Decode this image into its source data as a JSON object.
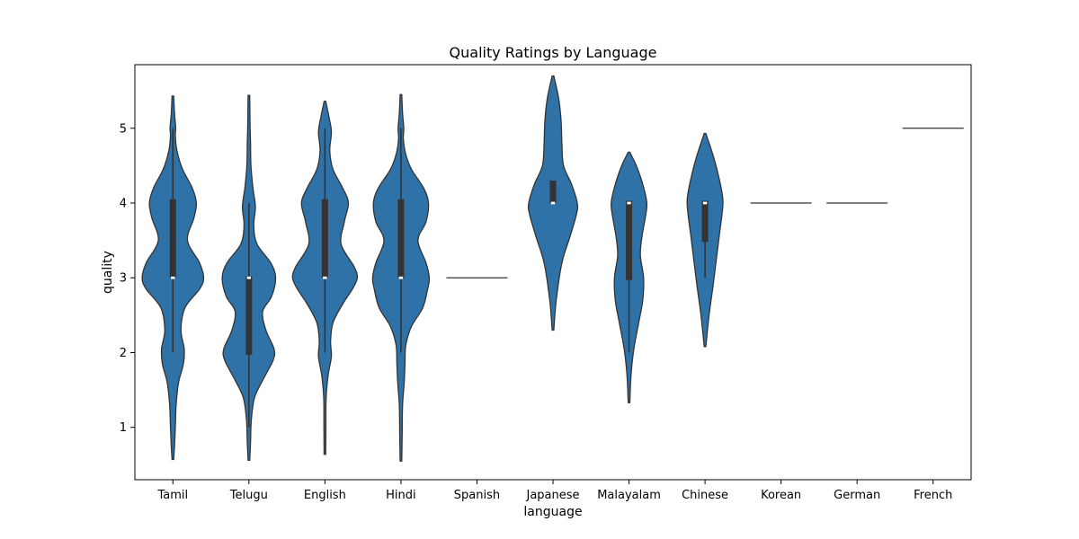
{
  "chart_data": {
    "type": "violin",
    "title": "Quality Ratings by Language",
    "xlabel": "language",
    "ylabel": "quality",
    "ylim": [
      0.3,
      5.85
    ],
    "yticks": [
      1,
      2,
      3,
      4,
      5
    ],
    "grid": false,
    "legend": "none",
    "color": "#2f72a8",
    "edge_color": "#333333",
    "categories": [
      "Tamil",
      "Telugu",
      "English",
      "Hindi",
      "Spanish",
      "Japanese",
      "Malayalam",
      "Chinese",
      "Korean",
      "German",
      "French"
    ],
    "violins": [
      {
        "category": "Tamil",
        "min": 0.57,
        "max": 5.43,
        "q1": 3.0,
        "median": 3.0,
        "q3": 4.05,
        "whisker_low": 2.0,
        "whisker_high": 5.0,
        "density": [
          [
            0.57,
            0.01
          ],
          [
            0.75,
            0.02
          ],
          [
            1.0,
            0.03
          ],
          [
            1.3,
            0.04
          ],
          [
            1.6,
            0.07
          ],
          [
            1.85,
            0.13
          ],
          [
            2.05,
            0.14
          ],
          [
            2.3,
            0.1
          ],
          [
            2.6,
            0.15
          ],
          [
            2.85,
            0.33
          ],
          [
            3.0,
            0.38
          ],
          [
            3.2,
            0.33
          ],
          [
            3.5,
            0.18
          ],
          [
            3.8,
            0.26
          ],
          [
            4.0,
            0.29
          ],
          [
            4.2,
            0.24
          ],
          [
            4.45,
            0.12
          ],
          [
            4.7,
            0.05
          ],
          [
            4.9,
            0.03
          ],
          [
            5.0,
            0.035
          ],
          [
            5.2,
            0.02
          ],
          [
            5.43,
            0.01
          ]
        ]
      },
      {
        "category": "Telugu",
        "min": 0.56,
        "max": 5.44,
        "q1": 1.97,
        "median": 3.0,
        "q3": 3.02,
        "whisker_low": 1.0,
        "whisker_high": 4.0,
        "density": [
          [
            0.56,
            0.01
          ],
          [
            0.8,
            0.02
          ],
          [
            1.1,
            0.03
          ],
          [
            1.4,
            0.07
          ],
          [
            1.65,
            0.18
          ],
          [
            1.9,
            0.3
          ],
          [
            2.05,
            0.31
          ],
          [
            2.3,
            0.21
          ],
          [
            2.55,
            0.17
          ],
          [
            2.75,
            0.28
          ],
          [
            3.0,
            0.33
          ],
          [
            3.2,
            0.27
          ],
          [
            3.45,
            0.1
          ],
          [
            3.7,
            0.06
          ],
          [
            3.95,
            0.08
          ],
          [
            4.2,
            0.05
          ],
          [
            4.5,
            0.025
          ],
          [
            4.8,
            0.02
          ],
          [
            5.0,
            0.015
          ],
          [
            5.44,
            0.01
          ]
        ]
      },
      {
        "category": "English",
        "min": 0.64,
        "max": 5.36,
        "q1": 3.0,
        "median": 3.0,
        "q3": 4.05,
        "whisker_low": 2.0,
        "whisker_high": 5.0,
        "density": [
          [
            0.64,
            0.01
          ],
          [
            1.0,
            0.012
          ],
          [
            1.4,
            0.015
          ],
          [
            1.7,
            0.04
          ],
          [
            1.95,
            0.08
          ],
          [
            2.15,
            0.07
          ],
          [
            2.4,
            0.1
          ],
          [
            2.65,
            0.22
          ],
          [
            2.85,
            0.34
          ],
          [
            3.0,
            0.4
          ],
          [
            3.15,
            0.36
          ],
          [
            3.45,
            0.2
          ],
          [
            3.75,
            0.24
          ],
          [
            4.0,
            0.29
          ],
          [
            4.2,
            0.22
          ],
          [
            4.45,
            0.1
          ],
          [
            4.7,
            0.06
          ],
          [
            4.95,
            0.08
          ],
          [
            5.15,
            0.05
          ],
          [
            5.36,
            0.01
          ]
        ]
      },
      {
        "category": "Hindi",
        "min": 0.55,
        "max": 5.45,
        "q1": 3.0,
        "median": 3.0,
        "q3": 4.05,
        "whisker_low": 2.0,
        "whisker_high": 5.0,
        "density": [
          [
            0.55,
            0.01
          ],
          [
            0.9,
            0.015
          ],
          [
            1.3,
            0.02
          ],
          [
            1.6,
            0.04
          ],
          [
            1.85,
            0.05
          ],
          [
            2.1,
            0.06
          ],
          [
            2.35,
            0.13
          ],
          [
            2.6,
            0.27
          ],
          [
            2.85,
            0.33
          ],
          [
            3.0,
            0.35
          ],
          [
            3.2,
            0.31
          ],
          [
            3.5,
            0.21
          ],
          [
            3.75,
            0.31
          ],
          [
            4.0,
            0.34
          ],
          [
            4.2,
            0.28
          ],
          [
            4.45,
            0.13
          ],
          [
            4.65,
            0.06
          ],
          [
            4.85,
            0.03
          ],
          [
            5.0,
            0.035
          ],
          [
            5.2,
            0.02
          ],
          [
            5.45,
            0.01
          ]
        ]
      },
      {
        "category": "Spanish",
        "constant": 3
      },
      {
        "category": "Japanese",
        "min": 2.3,
        "max": 5.7,
        "q1": 4.0,
        "median": 4.0,
        "q3": 4.3,
        "whisker_low": 4.0,
        "whisker_high": 4.3,
        "density": [
          [
            2.3,
            0.01
          ],
          [
            2.7,
            0.04
          ],
          [
            3.2,
            0.11
          ],
          [
            3.55,
            0.21
          ],
          [
            3.85,
            0.29
          ],
          [
            4.0,
            0.3
          ],
          [
            4.25,
            0.23
          ],
          [
            4.5,
            0.13
          ],
          [
            4.8,
            0.11
          ],
          [
            5.1,
            0.1
          ],
          [
            5.4,
            0.07
          ],
          [
            5.7,
            0.01
          ]
        ]
      },
      {
        "category": "Malayalam",
        "min": 1.33,
        "max": 4.68,
        "q1": 2.97,
        "median": 4.0,
        "q3": 4.03,
        "whisker_low": 2.0,
        "whisker_high": 4.03,
        "density": [
          [
            1.33,
            0.01
          ],
          [
            1.7,
            0.025
          ],
          [
            2.05,
            0.06
          ],
          [
            2.4,
            0.12
          ],
          [
            2.7,
            0.17
          ],
          [
            3.0,
            0.18
          ],
          [
            3.3,
            0.14
          ],
          [
            3.55,
            0.16
          ],
          [
            3.8,
            0.2
          ],
          [
            4.0,
            0.22
          ],
          [
            4.25,
            0.17
          ],
          [
            4.5,
            0.09
          ],
          [
            4.68,
            0.01
          ]
        ]
      },
      {
        "category": "Chinese",
        "min": 2.08,
        "max": 4.93,
        "q1": 3.48,
        "median": 4.0,
        "q3": 4.03,
        "whisker_low": 3.0,
        "whisker_high": 4.03,
        "density": [
          [
            2.08,
            0.01
          ],
          [
            2.5,
            0.05
          ],
          [
            2.9,
            0.1
          ],
          [
            3.25,
            0.14
          ],
          [
            3.6,
            0.18
          ],
          [
            3.85,
            0.21
          ],
          [
            4.05,
            0.22
          ],
          [
            4.3,
            0.18
          ],
          [
            4.6,
            0.11
          ],
          [
            4.93,
            0.01
          ]
        ]
      },
      {
        "category": "Korean",
        "constant": 4
      },
      {
        "category": "German",
        "constant": 4
      },
      {
        "category": "French",
        "constant": 5
      }
    ]
  }
}
